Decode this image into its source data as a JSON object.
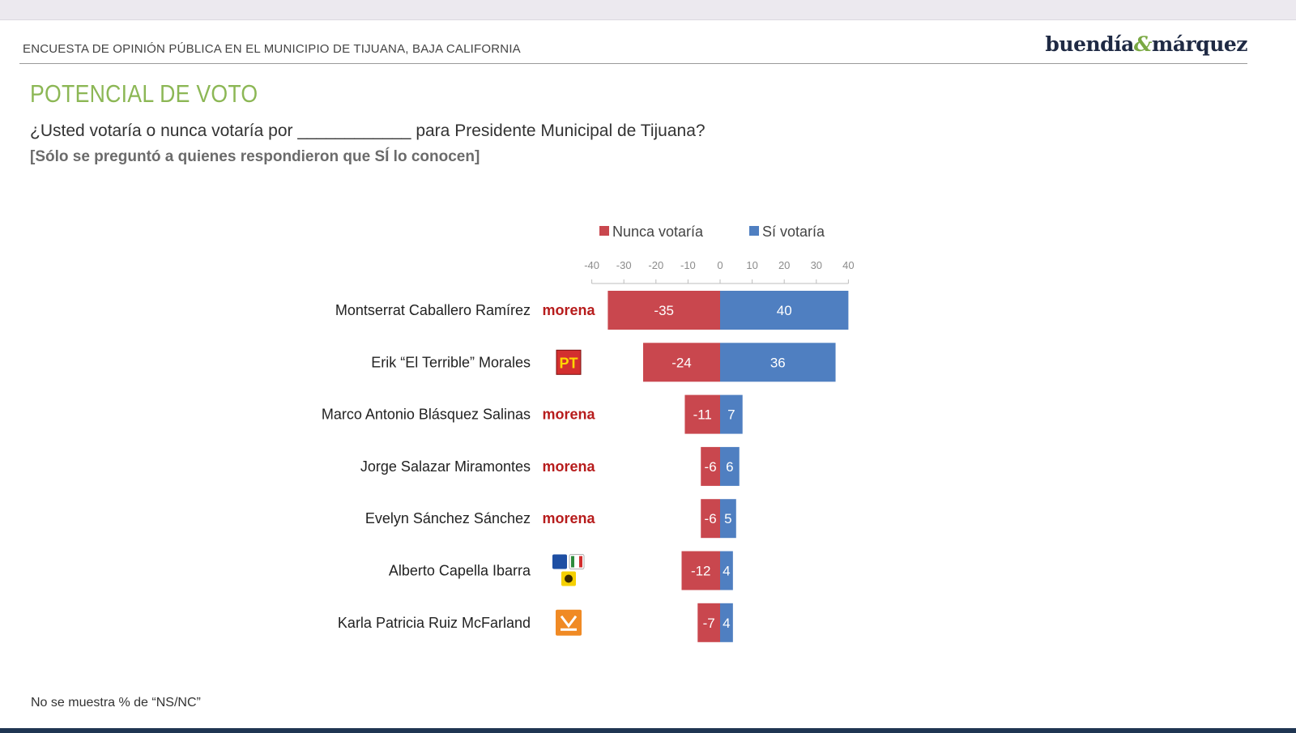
{
  "header": {
    "survey_title": "ENCUESTA DE OPINIÓN PÚBLICA EN EL MUNICIPIO DE TIJUANA, BAJA CALIFORNIA",
    "brand_left": "buendía",
    "brand_amp": "&",
    "brand_right": "márquez"
  },
  "section": {
    "title": "POTENCIAL DE VOTO",
    "question": "¿Usted votaría o nunca votaría por ____________ para Presidente Municipal de Tijuana?",
    "note": "[Sólo se preguntó a quienes respondieron que SÍ lo conocen]"
  },
  "footnote": "No se muestra % de “NS/NC”",
  "colors": {
    "nunca": "#c9474e",
    "si": "#4f7fc1",
    "morena": "#b71c1c",
    "pt": "#d32f2f",
    "mc": "#f08a24"
  },
  "chart_data": {
    "type": "bar",
    "orientation": "horizontal-diverging",
    "categories": [
      "Montserrat Caballero Ramírez",
      "Erik “El Terrible” Morales",
      "Marco Antonio Blásquez Salinas",
      "Jorge Salazar Miramontes",
      "Evelyn Sánchez Sánchez",
      "Alberto Capella Ibarra",
      "Karla Patricia Ruiz McFarland"
    ],
    "parties": [
      "morena",
      "pt",
      "morena",
      "morena",
      "morena",
      "pan-pri-prd",
      "mc"
    ],
    "party_text": {
      "morena": "morena",
      "pt": "PT"
    },
    "series": [
      {
        "name": "Nunca votaría",
        "values": [
          -35,
          -24,
          -11,
          -6,
          -6,
          -12,
          -7
        ]
      },
      {
        "name": "Sí votaría",
        "values": [
          40,
          36,
          7,
          6,
          5,
          4,
          4
        ]
      }
    ],
    "xlim": [
      -40,
      40
    ],
    "xticks": [
      -40,
      -30,
      -20,
      -10,
      0,
      10,
      20,
      30,
      40
    ],
    "legend_position": "top",
    "grid": false
  }
}
